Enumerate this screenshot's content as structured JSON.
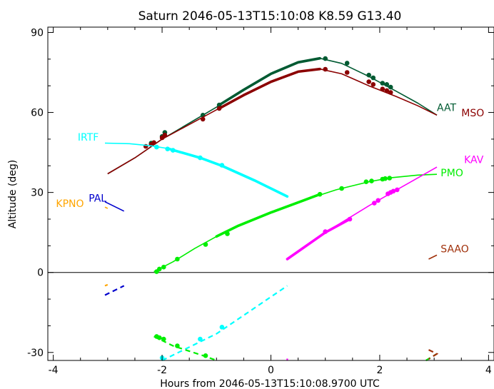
{
  "chart_data": {
    "type": "line",
    "title": "Saturn 2046-05-13T15:10:08  K8.59  G13.40",
    "xlabel": "Hours from 2046-05-13T15:10:08.9700 UTC",
    "ylabel": "Altitude (deg)",
    "xlim": [
      -4.1,
      4.1
    ],
    "ylim": [
      -33,
      92
    ],
    "x_ticks": [
      -4,
      -2,
      0,
      2,
      4
    ],
    "x_tick_labels": [
      "-4",
      "-2",
      "0",
      "2",
      "4"
    ],
    "y_ticks": [
      -30,
      0,
      30,
      60,
      90
    ],
    "y_tick_labels": [
      "-30",
      "0",
      "30",
      "60",
      "90"
    ],
    "grid": false,
    "zero_line": 0,
    "series": [
      {
        "name": "AAT",
        "color": "#005a32",
        "label_at": [
          3.05,
          60.5
        ],
        "thin": [
          [
            -3.0,
            37.0
          ],
          [
            -2.5,
            43.0
          ],
          [
            -2.0,
            50.0
          ],
          [
            -1.5,
            56.0
          ],
          [
            -1.0,
            62.0
          ],
          [
            -0.5,
            68.5
          ],
          [
            0.0,
            74.5
          ],
          [
            0.5,
            78.8
          ],
          [
            0.9,
            80.3
          ],
          [
            1.3,
            78.4
          ],
          [
            1.8,
            73.5
          ],
          [
            2.3,
            68.0
          ],
          [
            2.7,
            63.5
          ],
          [
            3.05,
            59.0
          ]
        ],
        "thick": [
          [
            -0.95,
            62.8
          ],
          [
            -0.5,
            68.5
          ],
          [
            0.0,
            74.5
          ],
          [
            0.5,
            78.8
          ],
          [
            0.9,
            80.3
          ]
        ],
        "points": [
          [
            -2.2,
            48.5
          ],
          [
            -2.0,
            51.0
          ],
          [
            -1.95,
            52.5
          ],
          [
            -1.25,
            59.0
          ],
          [
            -0.95,
            62.8
          ],
          [
            1.0,
            80.2
          ],
          [
            1.4,
            78.5
          ],
          [
            1.8,
            74.0
          ],
          [
            1.88,
            73.0
          ],
          [
            2.05,
            71.0
          ],
          [
            2.13,
            70.5
          ],
          [
            2.2,
            69.5
          ]
        ]
      },
      {
        "name": "MSO",
        "color": "#8b0000",
        "label_at": [
          3.5,
          58.5
        ],
        "thin": [
          [
            -3.0,
            37.0
          ],
          [
            -2.5,
            43.0
          ],
          [
            -2.0,
            50.0
          ],
          [
            -1.5,
            55.5
          ],
          [
            -1.0,
            61.0
          ],
          [
            -0.5,
            66.5
          ],
          [
            0.0,
            71.5
          ],
          [
            0.5,
            75.3
          ],
          [
            0.9,
            76.3
          ],
          [
            1.3,
            74.5
          ],
          [
            1.8,
            70.0
          ],
          [
            2.3,
            66.0
          ],
          [
            2.7,
            62.5
          ],
          [
            3.05,
            59.0
          ]
        ],
        "thick": [
          [
            -0.95,
            61.5
          ],
          [
            -0.5,
            66.5
          ],
          [
            0.0,
            71.5
          ],
          [
            0.5,
            75.3
          ],
          [
            0.9,
            76.3
          ]
        ],
        "points": [
          [
            -2.2,
            48.0
          ],
          [
            -2.15,
            48.7
          ],
          [
            -2.3,
            47.3
          ],
          [
            -2.0,
            50.5
          ],
          [
            -1.95,
            51.5
          ],
          [
            -1.25,
            57.5
          ],
          [
            -0.95,
            61.5
          ],
          [
            1.0,
            76.2
          ],
          [
            1.4,
            75.0
          ],
          [
            1.8,
            71.5
          ],
          [
            1.88,
            70.5
          ],
          [
            2.05,
            68.8
          ],
          [
            2.13,
            68.2
          ],
          [
            2.2,
            67.5
          ]
        ]
      },
      {
        "name": "IRTF",
        "color": "#00ffff",
        "label_at": [
          -3.55,
          49.5
        ],
        "thin": [
          [
            -3.05,
            48.5
          ],
          [
            -2.6,
            48.3
          ],
          [
            -2.2,
            47.5
          ],
          [
            -1.9,
            46.5
          ]
        ],
        "thick": [
          [
            -1.9,
            46.5
          ],
          [
            -1.3,
            43.0
          ],
          [
            -0.9,
            40.0
          ],
          [
            -0.3,
            34.5
          ],
          [
            0.3,
            28.5
          ]
        ],
        "dashed": [
          [
            -2.0,
            -33.0
          ],
          [
            -1.0,
            -23.0
          ],
          [
            0.3,
            -5.0
          ]
        ],
        "points": [
          [
            -2.1,
            47.0
          ],
          [
            -1.9,
            46.3
          ],
          [
            -1.8,
            45.8
          ],
          [
            -1.3,
            43.0
          ],
          [
            -0.9,
            40.2
          ],
          [
            -2.0,
            -32.0
          ],
          [
            -1.3,
            -25.0
          ],
          [
            -0.9,
            -20.5
          ]
        ]
      },
      {
        "name": "KPNO",
        "color": "#ffa500",
        "label_at": [
          -3.95,
          24.5
        ],
        "thin": [
          [
            -3.05,
            24.5
          ],
          [
            -3.0,
            24.0
          ]
        ],
        "dashed": [
          [
            -3.05,
            -5.0
          ],
          [
            -3.0,
            -4.6
          ]
        ],
        "points": []
      },
      {
        "name": "PAL",
        "color": "#0000cd",
        "label_at": [
          -3.35,
          26.5
        ],
        "thin": [
          [
            -3.05,
            26.5
          ],
          [
            -2.7,
            23.0
          ]
        ],
        "dashed": [
          [
            -3.05,
            -8.5
          ],
          [
            -2.7,
            -5.0
          ]
        ],
        "points": []
      },
      {
        "name": "PMO",
        "color": "#00ee00",
        "label_at": [
          3.12,
          36.0
        ],
        "thin": [
          [
            -2.15,
            0.3
          ],
          [
            -1.8,
            4.0
          ],
          [
            -1.4,
            9.0
          ],
          [
            -1.0,
            13.5
          ],
          [
            -0.6,
            17.5
          ],
          [
            0.0,
            22.5
          ],
          [
            0.6,
            27.0
          ],
          [
            1.2,
            31.0
          ],
          [
            1.8,
            34.0
          ],
          [
            2.2,
            35.5
          ],
          [
            2.7,
            36.5
          ],
          [
            3.05,
            36.8
          ]
        ],
        "thick": [
          [
            -1.0,
            13.5
          ],
          [
            -0.6,
            17.5
          ],
          [
            0.0,
            22.5
          ],
          [
            0.6,
            27.0
          ],
          [
            0.9,
            29.3
          ]
        ],
        "dashed": [
          [
            -2.15,
            -24.0
          ],
          [
            -1.8,
            -27.5
          ],
          [
            -1.2,
            -31.5
          ],
          [
            -1.0,
            -33.0
          ]
        ],
        "dashed_right": [
          [
            2.85,
            -33.0
          ],
          [
            3.05,
            -30.5
          ]
        ],
        "points": [
          [
            -2.1,
            0.3
          ],
          [
            -2.05,
            1.3
          ],
          [
            -1.97,
            2.0
          ],
          [
            -1.72,
            5.0
          ],
          [
            -1.2,
            10.5
          ],
          [
            -0.8,
            14.5
          ],
          [
            0.9,
            29.3
          ],
          [
            1.3,
            31.5
          ],
          [
            1.75,
            34.0
          ],
          [
            1.85,
            34.3
          ],
          [
            2.05,
            35.0
          ],
          [
            2.1,
            35.2
          ],
          [
            2.18,
            35.4
          ],
          [
            -2.1,
            -24.0
          ],
          [
            -2.05,
            -24.5
          ],
          [
            -1.97,
            -25.0
          ],
          [
            -1.72,
            -27.5
          ],
          [
            -1.2,
            -31.2
          ]
        ]
      },
      {
        "name": "KAV",
        "color": "#ff00ff",
        "label_at": [
          3.55,
          41.0
        ],
        "thin": [
          [
            0.3,
            5.0
          ],
          [
            1.0,
            15.0
          ],
          [
            1.8,
            25.0
          ],
          [
            2.4,
            32.0
          ],
          [
            3.05,
            39.5
          ]
        ],
        "thick": [
          [
            0.3,
            5.0
          ],
          [
            1.0,
            15.0
          ],
          [
            1.45,
            20.0
          ]
        ],
        "dashed": [
          [
            0.3,
            -33.0
          ],
          [
            0.3,
            -32.3
          ]
        ],
        "points": [
          [
            1.0,
            15.3
          ],
          [
            1.45,
            20.0
          ],
          [
            1.9,
            26.0
          ],
          [
            1.97,
            27.0
          ],
          [
            2.15,
            29.5
          ],
          [
            2.2,
            30.0
          ],
          [
            2.25,
            30.5
          ],
          [
            2.32,
            31.0
          ]
        ]
      },
      {
        "name": "SAAO",
        "color": "#a0300a",
        "label_at": [
          3.12,
          7.5
        ],
        "thin": [
          [
            2.9,
            5.0
          ],
          [
            3.05,
            6.5
          ]
        ],
        "dashed": [
          [
            2.9,
            -29.0
          ],
          [
            3.05,
            -30.5
          ],
          [
            2.9,
            -32.5
          ]
        ],
        "points": []
      }
    ]
  }
}
